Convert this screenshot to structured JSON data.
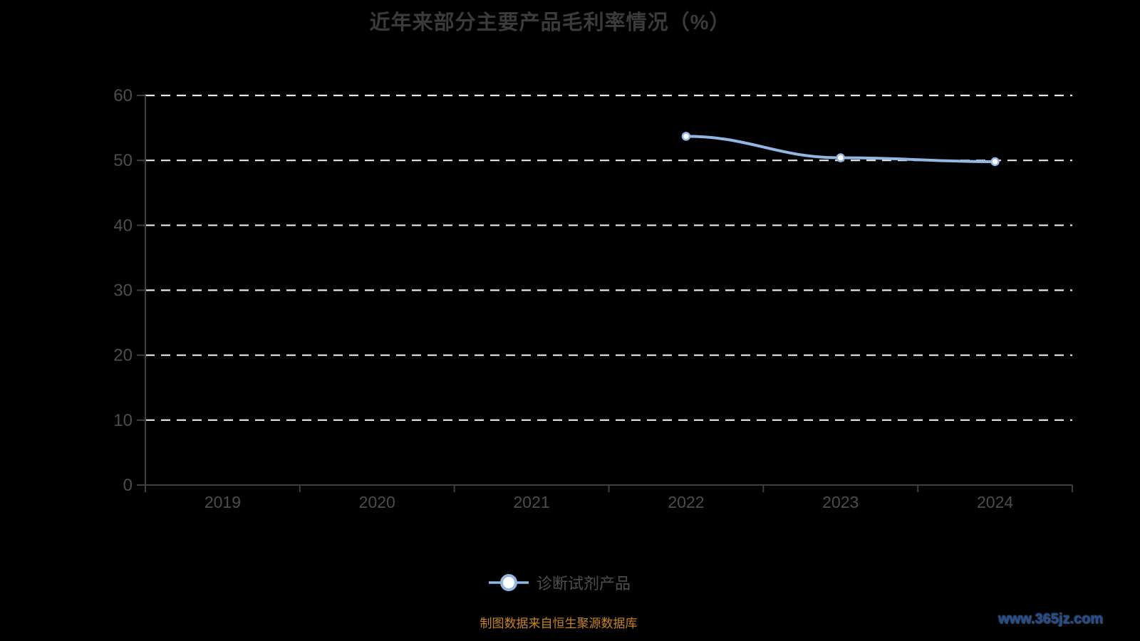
{
  "title": "近年来部分主要产品毛利率情况（%）",
  "chart_data": {
    "type": "line",
    "categories": [
      "2019",
      "2020",
      "2021",
      "2022",
      "2023",
      "2024"
    ],
    "series": [
      {
        "name": "诊断试剂产品",
        "values": [
          null,
          null,
          null,
          53.7,
          50.4,
          49.8
        ]
      }
    ],
    "ylim": [
      0,
      60
    ],
    "ytick_interval": 10,
    "ytick_labels": [
      "0",
      "10",
      "20",
      "30",
      "40",
      "50",
      "60"
    ],
    "grid": "horizontal-dashed",
    "legend_position": "bottom",
    "xlabel": "",
    "ylabel": ""
  },
  "legend": {
    "items": [
      {
        "label": "诊断试剂产品",
        "marker": "line-circle-icon"
      }
    ]
  },
  "footer": {
    "source_note": "制图数据来自恒生聚源数据库",
    "watermark": "www.365jz.com"
  },
  "colors": {
    "background": "#000000",
    "title_text": "#3b3b3b",
    "axis_line": "#3f3f3f",
    "axis_label": "#4d4d4d",
    "gridline": "#e8e8e8",
    "series_line": "#93b7e3",
    "marker_fill": "#ffffff",
    "legend_text": "#4e4e4e",
    "source_text": "#c6861c",
    "watermark_text": "#1e4e99"
  }
}
